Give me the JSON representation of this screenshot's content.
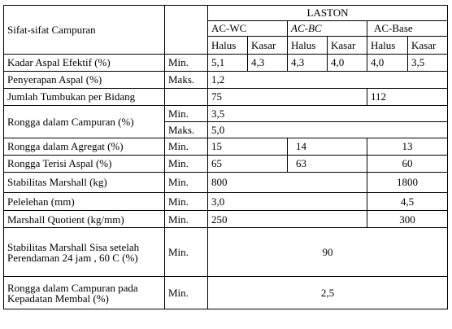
{
  "header": {
    "property_col": "Sifat-sifat Campuran",
    "group": "LASTON",
    "mixes": [
      "AC-WC",
      "AC-BC",
      "AC-Base"
    ],
    "grades": [
      "Halus",
      "Kasar",
      "Halus",
      "Kasar",
      "Halus",
      "Kasar"
    ]
  },
  "rows": {
    "kadar": {
      "label": "Kadar Aspal Efektif (%)",
      "limit": "Min.",
      "values": [
        "5,1",
        "4,3",
        "4,3",
        "4,0",
        "4,0",
        "3,5"
      ]
    },
    "penyerapan": {
      "label": "Penyerapan Aspal (%)",
      "limit": "Maks.",
      "value": "1,2"
    },
    "tumbukan": {
      "label": "Jumlah Tumbukan per Bidang",
      "value_ac": "75",
      "value_base": "112"
    },
    "rongga_campuran": {
      "label": "Rongga dalam Campuran (%)",
      "limit_min": "Min.",
      "value_min": "3,5",
      "limit_max": "Maks.",
      "value_max": "5,0"
    },
    "rongga_agregat": {
      "label": "Rongga dalam Agregat (%)",
      "limit": "Min.",
      "wc": "15",
      "bc": "14",
      "base": "13"
    },
    "rongga_terisi": {
      "label": "Rongga Terisi Aspal (%)",
      "limit": "Min.",
      "wc": "65",
      "bc": "63",
      "base": "60"
    },
    "stabilitas": {
      "label": "Stabilitas Marshall (kg)",
      "limit": "Min.",
      "ac": "800",
      "base": "1800"
    },
    "pelelehan": {
      "label": "Pelelehan (mm)",
      "limit": "Min.",
      "ac": "3,0",
      "base": "4,5"
    },
    "quotient": {
      "label": "Marshall Quotient (kg/mm)",
      "limit": "Min.",
      "ac": "250",
      "base": "300"
    },
    "sisa": {
      "label": "Stabilitas Marshall Sisa setelah Perendaman 24 jam , 60 C (%)",
      "limit": "Min.",
      "value": "90"
    },
    "membal": {
      "label": "Rongga dalam Campuran pada Kepadatan Membal (%)",
      "limit": "Min.",
      "value": "2,5"
    }
  }
}
